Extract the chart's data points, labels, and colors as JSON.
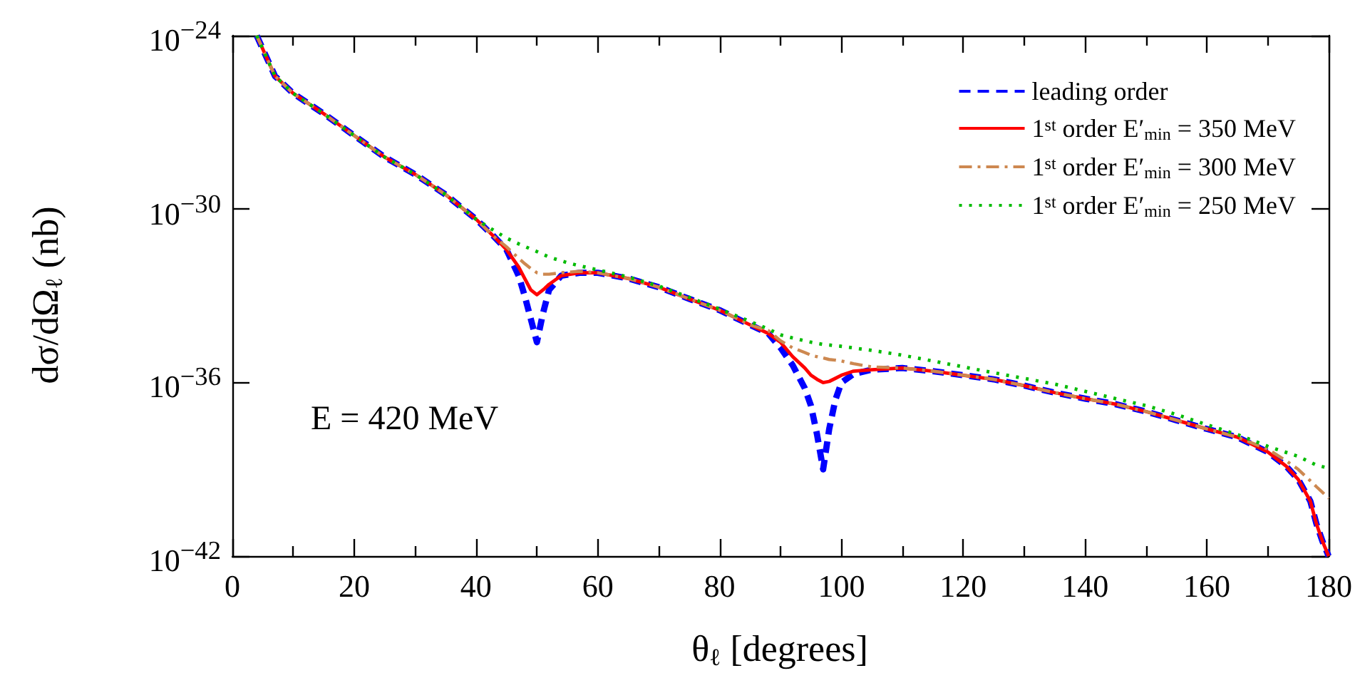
{
  "chart_data": {
    "type": "line",
    "xlabel": "θ$_{ℓ}$ [degrees]",
    "ylabel": "dσ/dΩ$_{ℓ}$ (nb)",
    "log": "y",
    "grid": false,
    "legend": "top right",
    "marker": "none",
    "xlim": [
      0,
      180
    ],
    "xticks": [
      0,
      {
        "value": 10,
        "label": null
      },
      20,
      {
        "value": 30,
        "label": null
      },
      40,
      {
        "value": 50,
        "label": null
      },
      60,
      {
        "value": 70,
        "label": null
      },
      80,
      {
        "value": 90,
        "label": null
      },
      100,
      {
        "value": 110,
        "label": null
      },
      120,
      {
        "value": 130,
        "label": null
      },
      140,
      {
        "value": 150,
        "label": null
      },
      160,
      {
        "value": 170,
        "label": null
      },
      180
    ],
    "ylim": [
      1e-42,
      1e-24
    ],
    "yticks": [
      {
        "value": 1e-42,
        "label": "10$^{−42}$"
      },
      {
        "value": 1e-36,
        "label": "10$^{−36}$"
      },
      {
        "value": 1e-30,
        "label": "10$^{−30}$"
      },
      {
        "value": 1e-24,
        "label": "10$^{−24}$"
      }
    ],
    "annotations": [
      "E = 420 MeV"
    ],
    "series": [
      {
        "name": "leading order",
        "color": "#0000ff",
        "line_style": "dashed",
        "x": [
          4,
          7,
          10,
          15,
          20,
          25,
          30,
          35,
          40,
          43,
          45,
          47,
          48,
          49,
          50,
          51,
          52,
          54,
          57,
          60,
          65,
          70,
          75,
          80,
          85,
          88,
          90,
          92,
          94,
          95,
          96,
          97,
          98,
          99,
          100,
          102,
          105,
          110,
          115,
          120,
          125,
          130,
          135,
          140,
          145,
          150,
          155,
          160,
          165,
          170,
          173,
          175,
          177,
          178,
          179,
          180
        ],
        "values": [
          1e-24,
          4e-26,
          1e-26,
          2e-27,
          3.5e-28,
          6.3e-29,
          1.6e-29,
          3.2e-30,
          4.5e-31,
          1.1e-31,
          4e-32,
          5e-33,
          1e-33,
          1.6e-34,
          2.5e-35,
          2.5e-34,
          1.6e-33,
          5e-33,
          6.3e-33,
          6.3e-33,
          4e-33,
          2e-33,
          7.9e-34,
          3.2e-34,
          1e-34,
          5e-35,
          1.6e-35,
          4e-36,
          6.3e-37,
          1.6e-37,
          1.6e-38,
          1e-39,
          2.5e-38,
          2.5e-37,
          1e-36,
          2e-36,
          2.8e-36,
          3.2e-36,
          2.5e-36,
          1.8e-36,
          1.3e-36,
          7.9e-37,
          4.5e-37,
          2.8e-37,
          1.8e-37,
          1e-37,
          5e-38,
          2.5e-38,
          1.3e-38,
          4e-39,
          1.3e-39,
          4.5e-40,
          7.9e-41,
          1.3e-41,
          3.2e-42,
          1e-42
        ]
      },
      {
        "name": "1$^{st}$ order E′$_{min}$ = 350 MeV",
        "color": "#ff0000",
        "line_style": "solid",
        "x": [
          4,
          7,
          10,
          15,
          20,
          25,
          30,
          35,
          40,
          43,
          45,
          47,
          48,
          49,
          50,
          51,
          52,
          54,
          57,
          60,
          65,
          70,
          75,
          80,
          85,
          88,
          90,
          92,
          94,
          95,
          96,
          97,
          98,
          99,
          100,
          102,
          105,
          110,
          115,
          120,
          125,
          130,
          135,
          140,
          145,
          150,
          155,
          160,
          165,
          170,
          173,
          175,
          177,
          178,
          179,
          180
        ],
        "values": [
          1e-24,
          4e-26,
          1e-26,
          2e-27,
          3.5e-28,
          6.3e-29,
          1.6e-29,
          3.2e-30,
          4.5e-31,
          1.1e-31,
          4e-32,
          1e-32,
          4e-33,
          1.6e-33,
          1.1e-33,
          1.6e-33,
          2.5e-33,
          5e-33,
          6.3e-33,
          6.3e-33,
          4e-33,
          2e-33,
          7.9e-34,
          3.2e-34,
          1e-34,
          5e-35,
          2.5e-35,
          7.9e-36,
          3.2e-36,
          1.8e-36,
          1.3e-36,
          1e-36,
          1.1e-36,
          1.4e-36,
          1.8e-36,
          2.5e-36,
          2.8e-36,
          3.2e-36,
          2.5e-36,
          1.8e-36,
          1.3e-36,
          7.9e-37,
          4.5e-37,
          2.8e-37,
          1.8e-37,
          1e-37,
          5e-38,
          2.5e-38,
          1.3e-38,
          4e-39,
          1.3e-39,
          4.5e-40,
          7.9e-41,
          1.3e-41,
          3.2e-42,
          1e-42
        ]
      },
      {
        "name": "1$^{st}$ order E′$_{min}$ = 300 MeV",
        "color": "#cd8850",
        "line_style": "dashdot",
        "x": [
          4,
          7,
          10,
          15,
          20,
          25,
          30,
          35,
          40,
          43,
          45,
          47,
          48,
          49,
          50,
          51,
          52,
          54,
          57,
          60,
          65,
          70,
          75,
          80,
          85,
          88,
          90,
          92,
          94,
          95,
          96,
          97,
          98,
          99,
          100,
          102,
          105,
          110,
          115,
          120,
          125,
          130,
          135,
          140,
          145,
          150,
          155,
          160,
          165,
          170,
          173,
          175,
          177,
          178,
          179,
          180
        ],
        "values": [
          1e-24,
          4e-26,
          1e-26,
          2e-27,
          3.5e-28,
          6.3e-29,
          1.6e-29,
          3.2e-30,
          4.5e-31,
          1.1e-31,
          5e-32,
          2e-32,
          1.3e-32,
          8.9e-33,
          6.3e-33,
          5.6e-33,
          5.6e-33,
          6.3e-33,
          7.1e-33,
          6.3e-33,
          4e-33,
          2e-33,
          7.9e-34,
          3.2e-34,
          1e-34,
          6.3e-35,
          2.8e-35,
          1.6e-35,
          1.1e-35,
          8.9e-36,
          7.9e-36,
          7.1e-36,
          6.3e-36,
          6e-36,
          5.6e-36,
          4.5e-36,
          3.5e-36,
          3.2e-36,
          2.5e-36,
          1.8e-36,
          1.3e-36,
          7.9e-37,
          4.5e-37,
          2.8e-37,
          1.8e-37,
          1e-37,
          5e-38,
          2.5e-38,
          1.3e-38,
          5e-39,
          2e-39,
          1e-39,
          4e-40,
          2.5e-40,
          1.6e-40,
          1e-40
        ]
      },
      {
        "name": "1$^{st}$ order E′$_{min}$ = 250 MeV",
        "color": "#00bb00",
        "line_style": "dotted",
        "x": [
          4,
          7,
          10,
          15,
          20,
          25,
          30,
          35,
          40,
          43,
          45,
          47,
          50,
          52,
          55,
          57,
          60,
          65,
          70,
          75,
          80,
          85,
          88,
          90,
          92,
          95,
          97,
          100,
          105,
          110,
          115,
          120,
          125,
          130,
          135,
          140,
          145,
          150,
          155,
          160,
          165,
          170,
          175,
          178,
          180
        ],
        "values": [
          1e-24,
          4e-26,
          1e-26,
          2e-27,
          3.5e-28,
          6.3e-29,
          1.6e-29,
          3.2e-30,
          4.5e-31,
          1.8e-31,
          1e-31,
          6.3e-32,
          3.4e-32,
          2.2e-32,
          1.4e-32,
          1.1e-32,
          7.9e-33,
          4.5e-33,
          2.2e-33,
          8.9e-34,
          3.5e-34,
          1.3e-34,
          7.1e-35,
          4.5e-35,
          3.5e-35,
          2.5e-35,
          2.1e-35,
          1.8e-35,
          1.3e-35,
          8.9e-36,
          5.6e-36,
          3.5e-36,
          2.2e-36,
          1.4e-36,
          8.9e-37,
          5e-37,
          2.8e-37,
          1.6e-37,
          7.9e-38,
          3.5e-38,
          1.6e-38,
          6.3e-39,
          2.8e-39,
          1.4e-39,
          1.1e-39
        ]
      }
    ]
  }
}
